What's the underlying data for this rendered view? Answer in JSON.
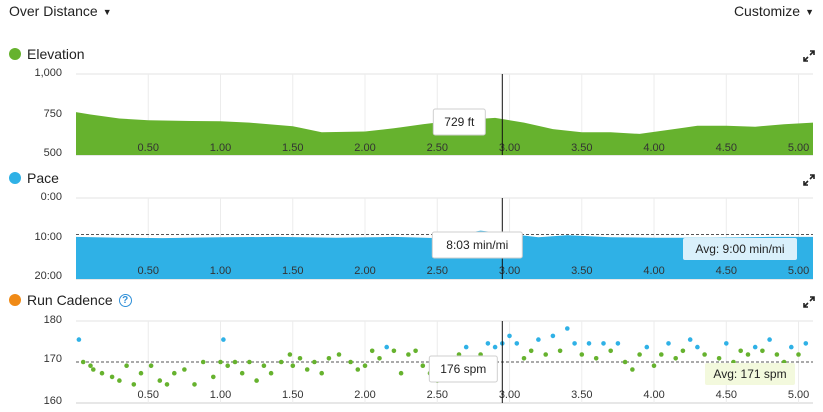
{
  "header": {
    "view_selector": "Over Distance",
    "customize": "Customize"
  },
  "charts": {
    "elevation": {
      "title": "Elevation",
      "color": "#66b22e",
      "y_ticks": [
        "1,000",
        "750",
        "500"
      ],
      "tooltip": "729 ft"
    },
    "pace": {
      "title": "Pace",
      "color": "#2fb1e6",
      "y_ticks": [
        "0:00",
        "10:00",
        "20:00"
      ],
      "tooltip": "8:03 min/mi",
      "avg_label": "Avg: 9:00 min/mi"
    },
    "cadence": {
      "title": "Run Cadence",
      "color": "#f08a16",
      "y_ticks": [
        "180",
        "170",
        "160"
      ],
      "tooltip": "176 spm",
      "avg_label": "Avg: 171 spm"
    }
  },
  "x_ticks": [
    "0.50",
    "1.00",
    "1.50",
    "2.00",
    "2.50",
    "3.00",
    "3.50",
    "4.00",
    "4.50",
    "5.00"
  ],
  "chart_data": [
    {
      "type": "area",
      "title": "Elevation",
      "ylabel": "",
      "ylim": [
        500,
        1000
      ],
      "x": [
        0.0,
        0.1,
        0.3,
        0.5,
        0.8,
        1.0,
        1.2,
        1.5,
        1.7,
        2.0,
        2.2,
        2.4,
        2.6,
        2.9,
        3.1,
        3.3,
        3.5,
        3.7,
        3.9,
        4.1,
        4.3,
        4.5,
        4.7,
        4.9,
        5.1
      ],
      "y": [
        765,
        750,
        725,
        715,
        710,
        708,
        700,
        678,
        640,
        645,
        665,
        690,
        712,
        729,
        700,
        660,
        640,
        640,
        630,
        655,
        680,
        680,
        675,
        690,
        700
      ],
      "cursor_x": 2.95,
      "cursor_label": "729 ft"
    },
    {
      "type": "area",
      "title": "Pace",
      "ylabel": "",
      "ylim": [
        0,
        20
      ],
      "y_unit": "min/mi",
      "x": [
        0.0,
        0.3,
        0.6,
        1.0,
        1.4,
        1.8,
        2.2,
        2.5,
        2.8,
        3.2,
        3.4,
        3.7,
        4.0,
        4.4,
        4.8,
        5.1
      ],
      "y": [
        9.6,
        9.8,
        9.9,
        9.7,
        9.6,
        9.8,
        9.6,
        9.9,
        8.05,
        9.7,
        9.2,
        9.7,
        9.8,
        9.8,
        9.6,
        9.6
      ],
      "average": 9.0,
      "average_label": "Avg: 9:00 min/mi",
      "cursor_x": 2.95,
      "cursor_label": "8:03 min/mi"
    },
    {
      "type": "scatter",
      "title": "Run Cadence",
      "ylabel": "",
      "ylim": [
        160,
        182
      ],
      "y_unit": "spm",
      "average": 171,
      "average_label": "Avg: 171 spm",
      "cursor_x": 2.95,
      "cursor_label": "176 spm",
      "x_range": [
        0.0,
        5.1
      ],
      "points": [
        [
          0.02,
          177
        ],
        [
          0.05,
          171
        ],
        [
          0.1,
          170
        ],
        [
          0.12,
          169
        ],
        [
          0.18,
          168
        ],
        [
          0.25,
          167
        ],
        [
          0.3,
          166
        ],
        [
          0.35,
          170
        ],
        [
          0.4,
          165
        ],
        [
          0.45,
          168
        ],
        [
          0.52,
          170
        ],
        [
          0.58,
          166
        ],
        [
          0.63,
          165
        ],
        [
          0.68,
          168
        ],
        [
          0.75,
          169
        ],
        [
          0.82,
          165
        ],
        [
          0.88,
          171
        ],
        [
          0.95,
          167
        ],
        [
          1.0,
          171
        ],
        [
          1.02,
          177
        ],
        [
          1.05,
          170
        ],
        [
          1.1,
          171
        ],
        [
          1.15,
          168
        ],
        [
          1.2,
          171
        ],
        [
          1.25,
          166
        ],
        [
          1.3,
          170
        ],
        [
          1.35,
          168
        ],
        [
          1.42,
          171
        ],
        [
          1.48,
          173
        ],
        [
          1.5,
          170
        ],
        [
          1.55,
          172
        ],
        [
          1.6,
          169
        ],
        [
          1.65,
          171
        ],
        [
          1.7,
          168
        ],
        [
          1.75,
          172
        ],
        [
          1.82,
          173
        ],
        [
          1.9,
          171
        ],
        [
          1.95,
          169
        ],
        [
          2.0,
          170
        ],
        [
          2.05,
          174
        ],
        [
          2.1,
          172
        ],
        [
          2.15,
          175
        ],
        [
          2.2,
          174
        ],
        [
          2.25,
          168
        ],
        [
          2.3,
          173
        ],
        [
          2.35,
          174
        ],
        [
          2.4,
          170
        ],
        [
          2.45,
          168
        ],
        [
          2.5,
          166
        ],
        [
          2.55,
          167
        ],
        [
          2.6,
          171
        ],
        [
          2.65,
          173
        ],
        [
          2.7,
          175
        ],
        [
          2.75,
          172
        ],
        [
          2.8,
          173
        ],
        [
          2.85,
          176
        ],
        [
          2.9,
          175
        ],
        [
          2.95,
          176
        ],
        [
          3.0,
          178
        ],
        [
          3.05,
          176
        ],
        [
          3.1,
          172
        ],
        [
          3.15,
          174
        ],
        [
          3.2,
          177
        ],
        [
          3.25,
          173
        ],
        [
          3.3,
          178
        ],
        [
          3.35,
          174
        ],
        [
          3.4,
          180
        ],
        [
          3.45,
          176
        ],
        [
          3.5,
          173
        ],
        [
          3.55,
          176
        ],
        [
          3.6,
          172
        ],
        [
          3.65,
          176
        ],
        [
          3.7,
          174
        ],
        [
          3.75,
          176
        ],
        [
          3.8,
          171
        ],
        [
          3.85,
          169
        ],
        [
          3.9,
          173
        ],
        [
          3.95,
          175
        ],
        [
          4.0,
          170
        ],
        [
          4.05,
          173
        ],
        [
          4.1,
          176
        ],
        [
          4.15,
          172
        ],
        [
          4.2,
          174
        ],
        [
          4.25,
          177
        ],
        [
          4.3,
          175
        ],
        [
          4.35,
          173
        ],
        [
          4.4,
          170
        ],
        [
          4.45,
          172
        ],
        [
          4.5,
          176
        ],
        [
          4.55,
          171
        ],
        [
          4.6,
          174
        ],
        [
          4.65,
          173
        ],
        [
          4.7,
          175
        ],
        [
          4.75,
          174
        ],
        [
          4.8,
          177
        ],
        [
          4.85,
          173
        ],
        [
          4.9,
          171
        ],
        [
          4.95,
          175
        ],
        [
          5.0,
          173
        ],
        [
          5.05,
          176
        ]
      ]
    }
  ]
}
